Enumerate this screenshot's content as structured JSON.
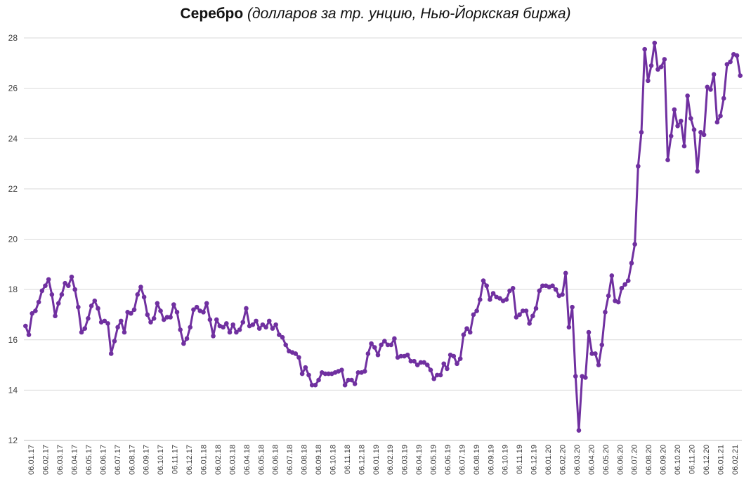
{
  "chart_data": {
    "type": "line",
    "title": "Серебро",
    "subtitle": "(долларов за тр. унцию, Нью-Йоркская биржа)",
    "xlabel": "",
    "ylabel": "",
    "ylim": [
      12,
      28
    ],
    "yticks": [
      12,
      14,
      16,
      18,
      20,
      22,
      24,
      26,
      28
    ],
    "grid": true,
    "legend": "none",
    "color": "#7030A0",
    "marker": "circle",
    "x_tick_labels": [
      "06.01.17",
      "06.02.17",
      "06.03.17",
      "06.04.17",
      "06.05.17",
      "06.06.17",
      "06.07.17",
      "06.08.17",
      "06.09.17",
      "06.10.17",
      "06.11.17",
      "06.12.17",
      "06.01.18",
      "06.02.18",
      "06.03.18",
      "06.04.18",
      "06.05.18",
      "06.06.18",
      "06.07.18",
      "06.08.18",
      "06.09.18",
      "06.10.18",
      "06.11.18",
      "06.12.18",
      "06.01.19",
      "06.02.19",
      "06.03.19",
      "06.04.19",
      "06.05.19",
      "06.06.19",
      "06.07.19",
      "06.08.19",
      "06.09.19",
      "06.10.19",
      "06.11.19",
      "06.12.19",
      "06.01.20",
      "06.02.20",
      "06.03.20",
      "06.04.20",
      "06.05.20",
      "06.06.20",
      "06.07.20",
      "06.08.20",
      "06.09.20",
      "06.10.20",
      "06.11.20",
      "06.12.20",
      "06.01.21",
      "06.02.21"
    ],
    "values": [
      16.55,
      16.2,
      17.05,
      17.15,
      17.5,
      17.95,
      18.15,
      18.4,
      17.8,
      16.95,
      17.45,
      17.8,
      18.25,
      18.15,
      18.5,
      18.0,
      17.3,
      16.3,
      16.45,
      16.85,
      17.35,
      17.55,
      17.25,
      16.7,
      16.75,
      16.65,
      15.45,
      15.95,
      16.5,
      16.75,
      16.3,
      17.1,
      17.05,
      17.2,
      17.8,
      18.1,
      17.7,
      17.0,
      16.7,
      16.85,
      17.45,
      17.15,
      16.8,
      16.9,
      16.9,
      17.4,
      17.1,
      16.4,
      15.85,
      16.05,
      16.5,
      17.2,
      17.3,
      17.15,
      17.1,
      17.45,
      16.8,
      16.15,
      16.8,
      16.55,
      16.5,
      16.65,
      16.3,
      16.6,
      16.3,
      16.4,
      16.7,
      17.25,
      16.55,
      16.6,
      16.75,
      16.45,
      16.6,
      16.5,
      16.75,
      16.45,
      16.6,
      16.2,
      16.1,
      15.8,
      15.55,
      15.5,
      15.45,
      15.3,
      14.65,
      14.9,
      14.6,
      14.2,
      14.2,
      14.4,
      14.7,
      14.65,
      14.65,
      14.65,
      14.7,
      14.75,
      14.8,
      14.2,
      14.4,
      14.4,
      14.25,
      14.7,
      14.7,
      14.75,
      15.45,
      15.85,
      15.7,
      15.4,
      15.8,
      15.95,
      15.8,
      15.8,
      16.05,
      15.3,
      15.35,
      15.35,
      15.4,
      15.15,
      15.15,
      15.0,
      15.1,
      15.1,
      15.0,
      14.8,
      14.45,
      14.6,
      14.6,
      15.05,
      14.85,
      15.4,
      15.35,
      15.05,
      15.25,
      16.2,
      16.45,
      16.3,
      17.0,
      17.15,
      17.6,
      18.35,
      18.15,
      17.6,
      17.85,
      17.7,
      17.65,
      17.55,
      17.6,
      17.95,
      18.05,
      16.9,
      17.0,
      17.15,
      17.15,
      16.65,
      16.95,
      17.25,
      17.95,
      18.15,
      18.15,
      18.1,
      18.15,
      18.0,
      17.75,
      17.8,
      18.65,
      16.5,
      17.3,
      14.55,
      12.4,
      14.55,
      14.5,
      16.3,
      15.45,
      15.45,
      15.0,
      15.8,
      17.1,
      17.75,
      18.55,
      17.55,
      17.5,
      18.05,
      18.2,
      18.35,
      19.05,
      19.8,
      22.9,
      24.25,
      27.55,
      26.3,
      26.9,
      27.8,
      26.75,
      26.85,
      27.15,
      23.15,
      24.1,
      25.15,
      24.5,
      24.7,
      23.7,
      25.7,
      24.8,
      24.35,
      22.7,
      24.25,
      24.15,
      26.05,
      25.95,
      26.55,
      24.65,
      24.9,
      25.6,
      26.95,
      27.05,
      27.35,
      27.3,
      26.5
    ]
  }
}
